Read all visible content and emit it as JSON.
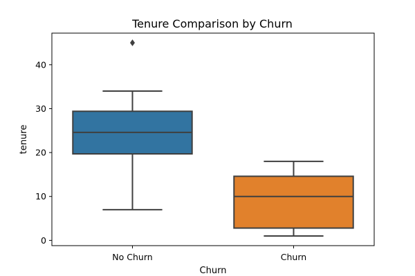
{
  "chart_data": {
    "type": "box",
    "title": "Tenure Comparison by Churn",
    "xlabel": "Churn",
    "ylabel": "tenure",
    "ylim": [
      -1.2,
      47.2
    ],
    "yticks": [
      0,
      10,
      20,
      30,
      40
    ],
    "grid": false,
    "categories": [
      "No Churn",
      "Churn"
    ],
    "boxes": [
      {
        "category": "No Churn",
        "color": "#3274a1",
        "whisker_low": 7,
        "q1": 19.7,
        "median": 24.6,
        "q3": 29.4,
        "whisker_high": 34,
        "outliers": [
          45
        ]
      },
      {
        "category": "Churn",
        "color": "#e1812c",
        "whisker_low": 1,
        "q1": 2.8,
        "median": 10,
        "q3": 14.6,
        "whisker_high": 18,
        "outliers": []
      }
    ]
  }
}
